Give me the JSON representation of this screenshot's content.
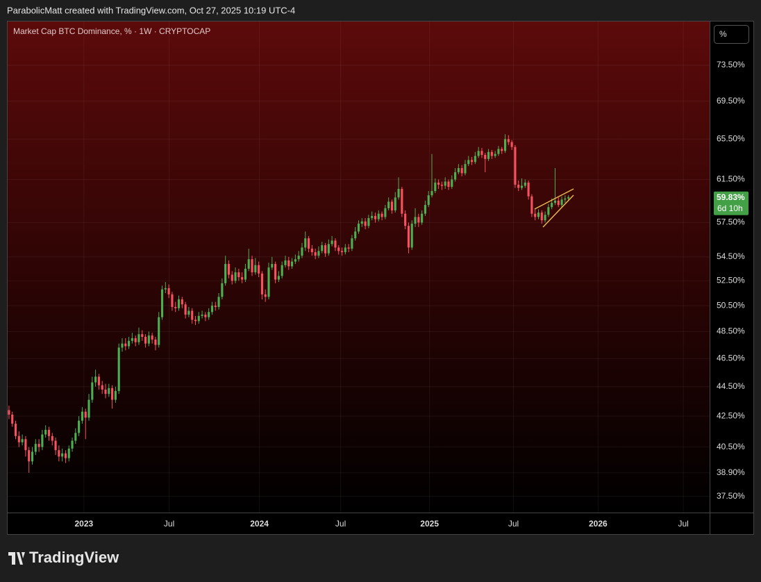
{
  "header": "ParabolicMatt created with TradingView.com, Oct 27, 2025 10:19 UTC-4",
  "footer": "TradingView",
  "chart_data": {
    "type": "candlestick",
    "title": "Market Cap BTC Dominance, % · 1W · CRYPTOCAP",
    "scale_button": "%",
    "log": true,
    "grid": true,
    "up_color": "#4caf50",
    "down_color": "#f7525f",
    "ylim": [
      36.56,
      78.7
    ],
    "yticks": [
      {
        "value": 37.5,
        "label": "37.50%"
      },
      {
        "value": 38.9,
        "label": "38.90%"
      },
      {
        "value": 40.5,
        "label": "40.50%"
      },
      {
        "value": 42.5,
        "label": "42.50%"
      },
      {
        "value": 44.5,
        "label": "44.50%"
      },
      {
        "value": 46.5,
        "label": "46.50%"
      },
      {
        "value": 48.5,
        "label": "48.50%"
      },
      {
        "value": 50.5,
        "label": "50.50%"
      },
      {
        "value": 52.5,
        "label": "52.50%"
      },
      {
        "value": 54.5,
        "label": "54.50%"
      },
      {
        "value": 57.5,
        "label": "57.50%"
      },
      {
        "value": 61.5,
        "label": "61.50%"
      },
      {
        "value": 65.5,
        "label": "65.50%"
      },
      {
        "value": 69.5,
        "label": "69.50%"
      },
      {
        "value": 73.5,
        "label": "73.50%"
      }
    ],
    "xlim": [
      -0.4,
      210.4
    ],
    "xticks": [
      {
        "value": 22.5,
        "label": "2023"
      },
      {
        "value": 48.1,
        "label": "Jul"
      },
      {
        "value": 75.2,
        "label": "2024"
      },
      {
        "value": 99.6,
        "label": "Jul"
      },
      {
        "value": 126.3,
        "label": "2025"
      },
      {
        "value": 151.5,
        "label": "Jul"
      },
      {
        "value": 176.9,
        "label": "2026"
      },
      {
        "value": 202.5,
        "label": "Jul"
      }
    ],
    "last": {
      "value": 59.83,
      "label": "59.83%",
      "countdown": "6d 10h",
      "color": "#43a047"
    },
    "candles": [
      [
        42.9,
        43.2,
        42.3,
        42.6
      ],
      [
        42.6,
        42.8,
        41.8,
        42.0
      ],
      [
        42.0,
        42.2,
        41.0,
        41.2
      ],
      [
        41.2,
        41.5,
        40.5,
        40.8
      ],
      [
        40.8,
        41.3,
        40.6,
        41.0
      ],
      [
        41.0,
        41.2,
        39.9,
        40.3
      ],
      [
        40.3,
        40.5,
        38.9,
        39.6
      ],
      [
        39.6,
        40.5,
        39.4,
        40.2
      ],
      [
        40.2,
        41.0,
        40.0,
        40.7
      ],
      [
        40.7,
        41.0,
        40.2,
        40.5
      ],
      [
        40.5,
        41.6,
        40.3,
        41.3
      ],
      [
        41.3,
        41.9,
        41.1,
        41.6
      ],
      [
        41.6,
        41.8,
        40.9,
        41.2
      ],
      [
        41.2,
        41.4,
        40.6,
        40.9
      ],
      [
        40.9,
        41.1,
        40.0,
        40.3
      ],
      [
        40.3,
        40.6,
        39.6,
        39.9
      ],
      [
        39.9,
        40.4,
        39.6,
        40.1
      ],
      [
        40.1,
        40.3,
        39.5,
        39.8
      ],
      [
        39.8,
        40.6,
        39.6,
        40.4
      ],
      [
        40.4,
        41.1,
        40.2,
        40.9
      ],
      [
        40.9,
        41.7,
        40.7,
        41.4
      ],
      [
        41.4,
        42.5,
        41.2,
        42.2
      ],
      [
        42.2,
        43.1,
        42.0,
        42.8
      ],
      [
        42.8,
        43.0,
        41.0,
        42.4
      ],
      [
        42.4,
        44.0,
        42.2,
        43.6
      ],
      [
        43.6,
        45.2,
        43.4,
        44.8
      ],
      [
        44.8,
        45.7,
        44.5,
        45.2
      ],
      [
        45.2,
        45.4,
        44.3,
        44.6
      ],
      [
        44.6,
        44.9,
        44.0,
        44.3
      ],
      [
        44.3,
        44.7,
        43.7,
        44.0
      ],
      [
        44.0,
        44.7,
        43.8,
        44.4
      ],
      [
        44.4,
        44.6,
        43.0,
        43.6
      ],
      [
        43.6,
        44.5,
        43.4,
        44.2
      ],
      [
        44.2,
        47.6,
        44.0,
        47.3
      ],
      [
        47.3,
        48.0,
        47.0,
        47.6
      ],
      [
        47.6,
        48.0,
        47.1,
        47.4
      ],
      [
        47.4,
        48.1,
        47.2,
        47.8
      ],
      [
        47.8,
        48.4,
        47.6,
        48.0
      ],
      [
        48.0,
        48.2,
        47.4,
        47.7
      ],
      [
        47.7,
        48.8,
        47.5,
        48.3
      ],
      [
        48.3,
        48.6,
        47.8,
        48.1
      ],
      [
        48.1,
        48.3,
        47.3,
        47.6
      ],
      [
        47.6,
        48.5,
        47.4,
        48.2
      ],
      [
        48.2,
        48.4,
        47.6,
        47.9
      ],
      [
        47.9,
        48.1,
        47.1,
        47.5
      ],
      [
        47.5,
        50.0,
        47.3,
        49.6
      ],
      [
        49.6,
        52.1,
        49.4,
        51.8
      ],
      [
        51.8,
        52.4,
        51.5,
        51.9
      ],
      [
        51.9,
        52.2,
        51.1,
        51.4
      ],
      [
        51.4,
        51.6,
        50.1,
        50.4
      ],
      [
        50.4,
        50.8,
        50.0,
        50.3
      ],
      [
        50.3,
        51.3,
        50.1,
        51.0
      ],
      [
        51.0,
        51.2,
        50.3,
        50.6
      ],
      [
        50.6,
        50.8,
        49.5,
        49.8
      ],
      [
        49.8,
        50.4,
        49.6,
        50.1
      ],
      [
        50.1,
        50.3,
        49.1,
        49.4
      ],
      [
        49.4,
        49.7,
        49.0,
        49.3
      ],
      [
        49.3,
        50.0,
        49.1,
        49.7
      ],
      [
        49.7,
        50.1,
        49.5,
        49.8
      ],
      [
        49.8,
        50.0,
        49.3,
        49.6
      ],
      [
        49.6,
        50.3,
        49.4,
        50.0
      ],
      [
        50.0,
        50.8,
        49.8,
        50.5
      ],
      [
        50.5,
        50.8,
        50.1,
        50.4
      ],
      [
        50.4,
        51.5,
        50.2,
        51.2
      ],
      [
        51.2,
        52.7,
        51.0,
        52.3
      ],
      [
        52.3,
        54.6,
        52.1,
        53.9
      ],
      [
        53.9,
        54.2,
        52.7,
        53.0
      ],
      [
        53.0,
        53.3,
        52.2,
        52.5
      ],
      [
        52.5,
        53.6,
        52.3,
        53.2
      ],
      [
        53.2,
        53.5,
        52.5,
        52.8
      ],
      [
        52.8,
        53.2,
        52.3,
        52.6
      ],
      [
        52.6,
        53.9,
        52.4,
        53.5
      ],
      [
        53.5,
        55.2,
        53.3,
        54.3
      ],
      [
        54.3,
        54.6,
        52.9,
        53.2
      ],
      [
        53.2,
        54.4,
        53.0,
        53.8
      ],
      [
        53.8,
        54.1,
        52.8,
        53.1
      ],
      [
        53.1,
        53.3,
        51.0,
        51.4
      ],
      [
        51.4,
        51.8,
        50.8,
        51.2
      ],
      [
        51.2,
        54.0,
        51.0,
        53.6
      ],
      [
        53.6,
        54.5,
        53.4,
        53.9
      ],
      [
        53.9,
        54.1,
        52.3,
        52.6
      ],
      [
        52.6,
        53.3,
        52.4,
        52.9
      ],
      [
        52.9,
        54.1,
        52.7,
        53.8
      ],
      [
        53.8,
        54.6,
        53.6,
        54.2
      ],
      [
        54.2,
        54.5,
        53.4,
        53.7
      ],
      [
        53.7,
        54.4,
        53.5,
        54.1
      ],
      [
        54.1,
        54.7,
        53.9,
        54.3
      ],
      [
        54.3,
        55.0,
        54.1,
        54.6
      ],
      [
        54.6,
        55.7,
        54.4,
        55.3
      ],
      [
        55.3,
        56.7,
        55.0,
        56.1
      ],
      [
        56.1,
        56.3,
        54.9,
        55.2
      ],
      [
        55.2,
        55.5,
        54.6,
        54.9
      ],
      [
        54.9,
        55.2,
        54.3,
        54.6
      ],
      [
        54.6,
        55.4,
        54.4,
        55.0
      ],
      [
        55.0,
        55.8,
        54.8,
        55.5
      ],
      [
        55.5,
        55.7,
        54.5,
        54.8
      ],
      [
        54.8,
        56.0,
        54.6,
        55.6
      ],
      [
        55.6,
        56.3,
        55.4,
        55.9
      ],
      [
        55.9,
        56.1,
        55.0,
        55.3
      ],
      [
        55.3,
        55.5,
        54.7,
        55.0
      ],
      [
        55.0,
        55.3,
        54.6,
        54.9
      ],
      [
        54.9,
        55.6,
        54.7,
        55.3
      ],
      [
        55.3,
        55.6,
        54.9,
        55.2
      ],
      [
        55.2,
        56.4,
        55.0,
        56.1
      ],
      [
        56.1,
        57.1,
        55.9,
        56.7
      ],
      [
        56.7,
        57.7,
        56.5,
        57.4
      ],
      [
        57.4,
        57.9,
        57.1,
        57.6
      ],
      [
        57.6,
        57.9,
        56.9,
        57.2
      ],
      [
        57.2,
        58.2,
        57.0,
        57.9
      ],
      [
        57.9,
        58.5,
        57.7,
        58.1
      ],
      [
        58.1,
        58.4,
        57.5,
        57.8
      ],
      [
        57.8,
        58.6,
        57.6,
        58.3
      ],
      [
        58.3,
        58.5,
        57.7,
        58.0
      ],
      [
        58.0,
        59.1,
        57.8,
        58.8
      ],
      [
        58.8,
        59.8,
        58.6,
        59.4
      ],
      [
        59.4,
        59.6,
        58.3,
        58.6
      ],
      [
        58.6,
        60.3,
        58.4,
        59.8
      ],
      [
        59.8,
        61.7,
        59.6,
        60.6
      ],
      [
        60.6,
        60.8,
        58.0,
        58.3
      ],
      [
        58.3,
        58.6,
        56.9,
        57.2
      ],
      [
        57.2,
        57.5,
        54.8,
        55.3
      ],
      [
        55.3,
        57.7,
        55.1,
        57.4
      ],
      [
        57.4,
        58.8,
        57.1,
        58.0
      ],
      [
        58.0,
        58.3,
        57.1,
        57.5
      ],
      [
        57.5,
        58.6,
        57.3,
        58.3
      ],
      [
        58.3,
        59.5,
        58.1,
        59.1
      ],
      [
        59.1,
        60.4,
        58.9,
        60.0
      ],
      [
        60.0,
        64.0,
        59.8,
        60.4
      ],
      [
        60.4,
        61.6,
        60.2,
        61.2
      ],
      [
        61.2,
        61.5,
        60.6,
        61.0
      ],
      [
        61.0,
        61.3,
        60.5,
        60.9
      ],
      [
        60.9,
        61.7,
        60.6,
        61.3
      ],
      [
        61.3,
        61.5,
        60.5,
        60.8
      ],
      [
        60.8,
        61.9,
        60.6,
        61.5
      ],
      [
        61.5,
        62.6,
        61.3,
        62.2
      ],
      [
        62.2,
        63.0,
        62.0,
        62.6
      ],
      [
        62.6,
        62.9,
        61.8,
        62.1
      ],
      [
        62.1,
        63.4,
        61.9,
        63.0
      ],
      [
        63.0,
        63.8,
        62.8,
        63.4
      ],
      [
        63.4,
        63.7,
        62.9,
        63.2
      ],
      [
        63.2,
        64.2,
        63.0,
        63.8
      ],
      [
        63.8,
        64.7,
        63.6,
        64.3
      ],
      [
        64.3,
        64.6,
        63.6,
        63.9
      ],
      [
        63.9,
        64.1,
        62.2,
        63.5
      ],
      [
        63.5,
        64.5,
        63.3,
        64.2
      ],
      [
        64.2,
        64.4,
        63.5,
        63.8
      ],
      [
        63.8,
        64.3,
        63.6,
        64.0
      ],
      [
        64.0,
        64.8,
        63.8,
        64.5
      ],
      [
        64.5,
        64.7,
        64.0,
        64.3
      ],
      [
        64.3,
        66.0,
        64.1,
        65.5
      ],
      [
        65.5,
        65.9,
        64.9,
        65.2
      ],
      [
        65.2,
        65.4,
        64.4,
        64.7
      ],
      [
        64.7,
        64.9,
        60.7,
        61.0
      ],
      [
        61.0,
        61.4,
        60.4,
        60.7
      ],
      [
        60.7,
        61.6,
        60.5,
        60.9
      ],
      [
        60.9,
        61.5,
        60.7,
        61.2
      ],
      [
        61.2,
        61.4,
        59.6,
        59.9
      ],
      [
        59.9,
        60.1,
        58.0,
        58.3
      ],
      [
        58.3,
        58.7,
        57.7,
        58.0
      ],
      [
        58.0,
        58.7,
        57.8,
        58.4
      ],
      [
        58.4,
        58.6,
        57.4,
        57.7
      ],
      [
        57.7,
        58.5,
        57.5,
        58.2
      ],
      [
        58.2,
        59.2,
        58.0,
        58.9
      ],
      [
        58.9,
        59.7,
        58.7,
        59.3
      ],
      [
        59.3,
        62.6,
        59.1,
        59.5
      ],
      [
        59.5,
        59.8,
        58.9,
        59.1
      ],
      [
        59.1,
        59.9,
        58.9,
        59.6
      ],
      [
        59.6,
        60.0,
        59.3,
        59.7
      ],
      [
        59.7,
        60.0,
        59.5,
        59.83
      ]
    ]
  }
}
